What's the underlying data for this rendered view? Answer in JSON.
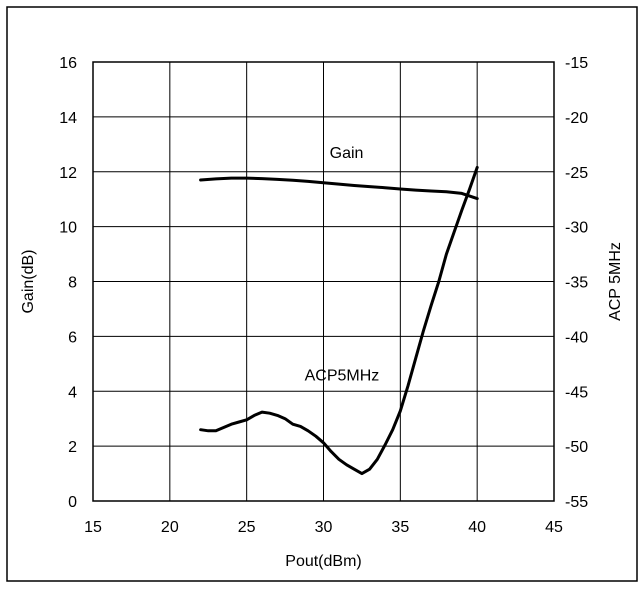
{
  "chart_data": {
    "type": "line",
    "title": "",
    "xlabel": "Pout(dBm)",
    "ylabel_left": "Gain(dB)",
    "ylabel_right": "ACP 5MHz",
    "xlim": [
      15,
      45
    ],
    "ylim_left": [
      0,
      16
    ],
    "ylim_right": [
      -55,
      -15
    ],
    "grid": true,
    "x_ticks": [
      "15",
      "20",
      "25",
      "30",
      "35",
      "40",
      "45"
    ],
    "y_left_ticks": [
      "0",
      "2",
      "4",
      "6",
      "8",
      "10",
      "12",
      "14",
      "16"
    ],
    "y_right_ticks": [
      "-55",
      "-50",
      "-45",
      "-40",
      "-35",
      "-30",
      "-25",
      "-20",
      "-15"
    ],
    "annotations": [
      {
        "text": "Gain",
        "x": 31.5,
        "y": 12.5,
        "axis": "left"
      },
      {
        "text": "ACP5MHz",
        "x": 31.2,
        "y": 4.4,
        "axis": "left"
      }
    ],
    "series": [
      {
        "name": "Gain",
        "axis": "left",
        "color": "#000000",
        "x": [
          22,
          23,
          24,
          25,
          26,
          27,
          28,
          29,
          30,
          31,
          32,
          33,
          34,
          35,
          36,
          37,
          38,
          39,
          40
        ],
        "y": [
          11.7,
          11.74,
          11.77,
          11.77,
          11.75,
          11.72,
          11.69,
          11.65,
          11.6,
          11.55,
          11.5,
          11.46,
          11.42,
          11.37,
          11.33,
          11.3,
          11.27,
          11.21,
          11.02
        ]
      },
      {
        "name": "ACP5MHz",
        "axis": "right",
        "color": "#000000",
        "x": [
          22,
          22.5,
          23,
          23.5,
          24,
          24.5,
          25,
          25.5,
          26,
          26.5,
          27,
          27.5,
          28,
          28.5,
          29,
          29.5,
          30,
          30.5,
          31,
          31.5,
          32,
          32.5,
          33,
          33.5,
          34,
          34.5,
          35,
          35.5,
          36,
          36.5,
          37,
          37.5,
          38,
          38.5,
          39,
          39.5,
          40
        ],
        "y": [
          -48.5,
          -48.6,
          -48.6,
          -48.3,
          -48.0,
          -47.8,
          -47.6,
          -47.2,
          -46.9,
          -47.0,
          -47.2,
          -47.5,
          -48.0,
          -48.2,
          -48.6,
          -49.1,
          -49.7,
          -50.5,
          -51.2,
          -51.7,
          -52.1,
          -52.5,
          -52.1,
          -51.2,
          -49.9,
          -48.5,
          -46.8,
          -44.5,
          -42.0,
          -39.5,
          -37.2,
          -35.0,
          -32.5,
          -30.5,
          -28.5,
          -26.6,
          -24.6
        ]
      }
    ]
  }
}
